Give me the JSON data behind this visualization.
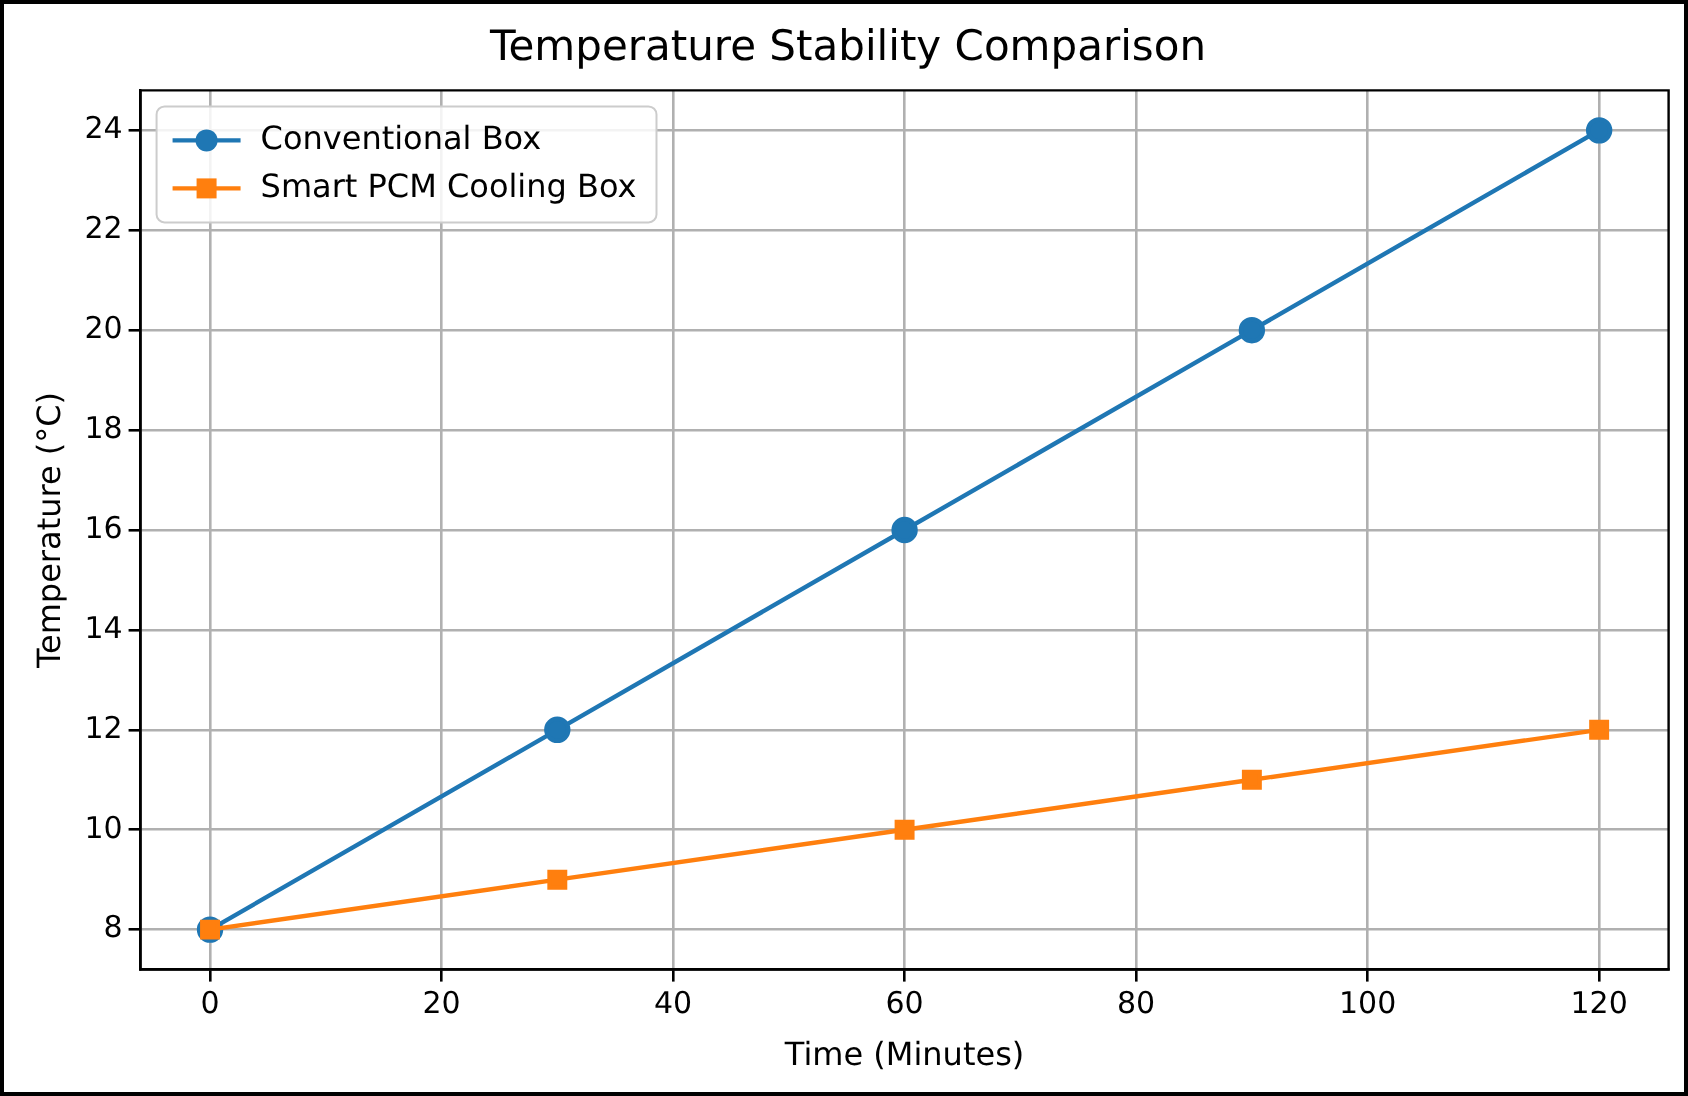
{
  "chart_data": {
    "type": "line",
    "title": "Temperature Stability Comparison",
    "xlabel": "Time (Minutes)",
    "ylabel": "Temperature (°C)",
    "x": [
      0,
      30,
      60,
      90,
      120
    ],
    "series": [
      {
        "name": "Conventional Box",
        "color": "#1f77b4",
        "marker": "circle",
        "values": [
          8,
          12,
          16,
          20,
          24
        ]
      },
      {
        "name": "Smart PCM Cooling Box",
        "color": "#ff7f0e",
        "marker": "square",
        "values": [
          8,
          9,
          10,
          11,
          12
        ]
      }
    ],
    "xlim": [
      -6,
      126
    ],
    "xticks": [
      0,
      20,
      40,
      60,
      80,
      100,
      120
    ],
    "ylim": [
      7.2,
      24.8
    ],
    "yticks": [
      8,
      10,
      12,
      14,
      16,
      18,
      20,
      22,
      24
    ],
    "grid": true,
    "legend": "top left",
    "line_style": "solid"
  }
}
